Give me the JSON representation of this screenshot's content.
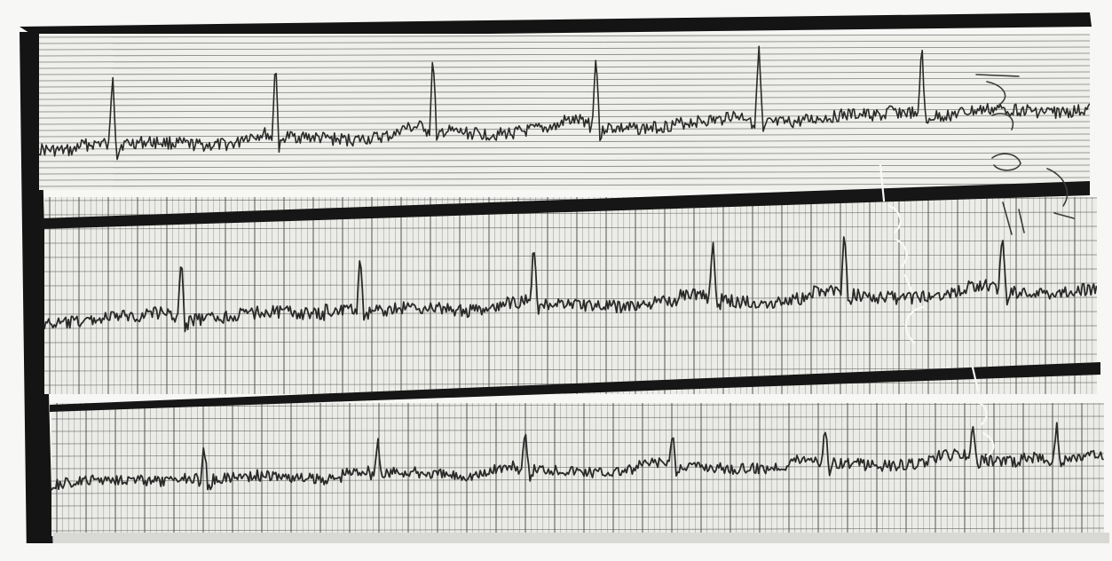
{
  "photo": {
    "subject": "",
    "colors": {
      "paper": "#eeeeea",
      "grid": "#4a4a4a",
      "trace": "#2a2a2a",
      "frame": "#141414",
      "margin": "#f6f6f4"
    }
  },
  "strips": [
    {
      "peaks": [
        0.07,
        0.225,
        0.375,
        0.53,
        0.685,
        0.84
      ]
    },
    {
      "peaks": [
        0.13,
        0.3,
        0.465,
        0.635,
        0.76,
        0.91
      ]
    },
    {
      "peaks": [
        0.145,
        0.31,
        0.45,
        0.59,
        0.735,
        0.875,
        0.955
      ]
    }
  ]
}
